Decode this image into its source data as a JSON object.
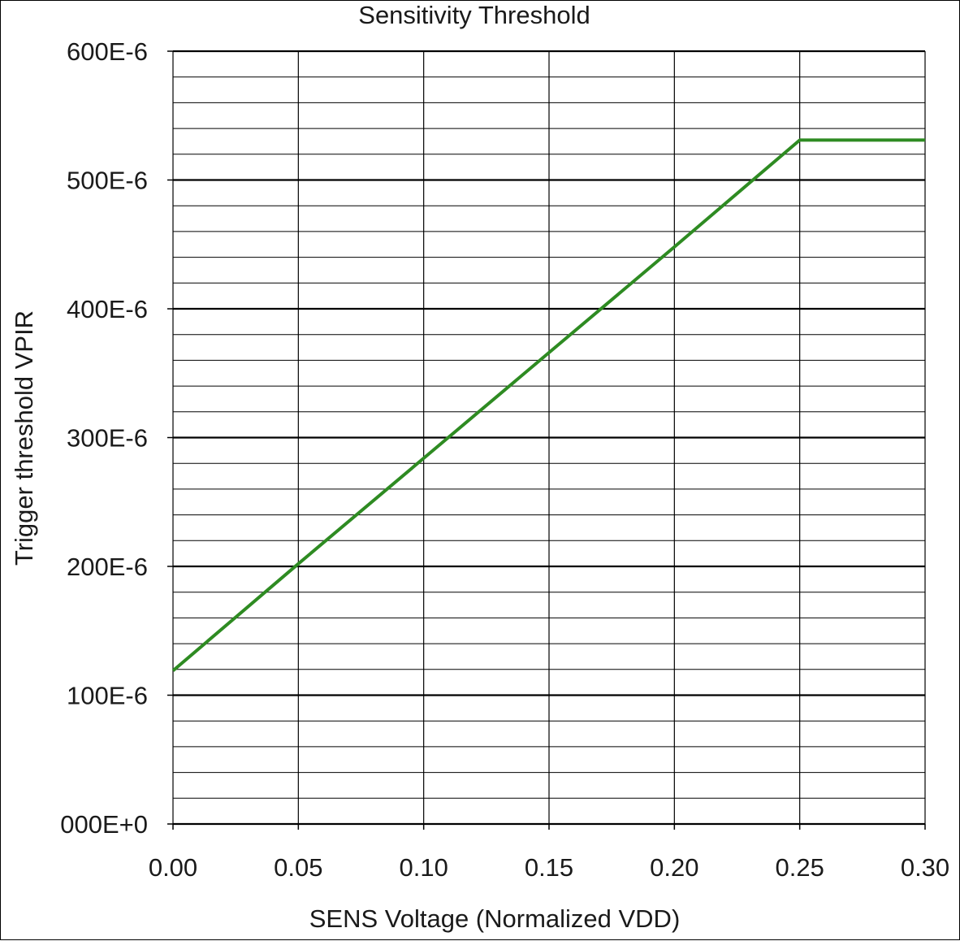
{
  "chart_data": {
    "type": "line",
    "title": "Sensitivity Threshold",
    "xlabel": "SENS Voltage (Normalized VDD)",
    "ylabel": "Trigger threshold VPIR",
    "xlim": [
      0,
      0.3
    ],
    "ylim": [
      0,
      0.0006
    ],
    "x_ticks": [
      {
        "value": 0.0,
        "label": "0.00"
      },
      {
        "value": 0.05,
        "label": "0.05"
      },
      {
        "value": 0.1,
        "label": "0.10"
      },
      {
        "value": 0.15,
        "label": "0.15"
      },
      {
        "value": 0.2,
        "label": "0.20"
      },
      {
        "value": 0.25,
        "label": "0.25"
      },
      {
        "value": 0.3,
        "label": "0.30"
      }
    ],
    "y_ticks": [
      {
        "value": 0.0,
        "label": "000E+0"
      },
      {
        "value": 0.0001,
        "label": "100E-6"
      },
      {
        "value": 0.0002,
        "label": "200E-6"
      },
      {
        "value": 0.0003,
        "label": "300E-6"
      },
      {
        "value": 0.0004,
        "label": "400E-6"
      },
      {
        "value": 0.0005,
        "label": "500E-6"
      },
      {
        "value": 0.0006,
        "label": "600E-6"
      }
    ],
    "y_minor_step": 2e-05,
    "grid": true,
    "series": [
      {
        "color": "#2e8b22",
        "x": [
          0.0,
          0.05,
          0.1,
          0.15,
          0.2,
          0.25,
          0.3
        ],
        "y": [
          0.000119,
          0.000202,
          0.000284,
          0.000366,
          0.000448,
          0.000531,
          0.000531
        ]
      }
    ]
  }
}
